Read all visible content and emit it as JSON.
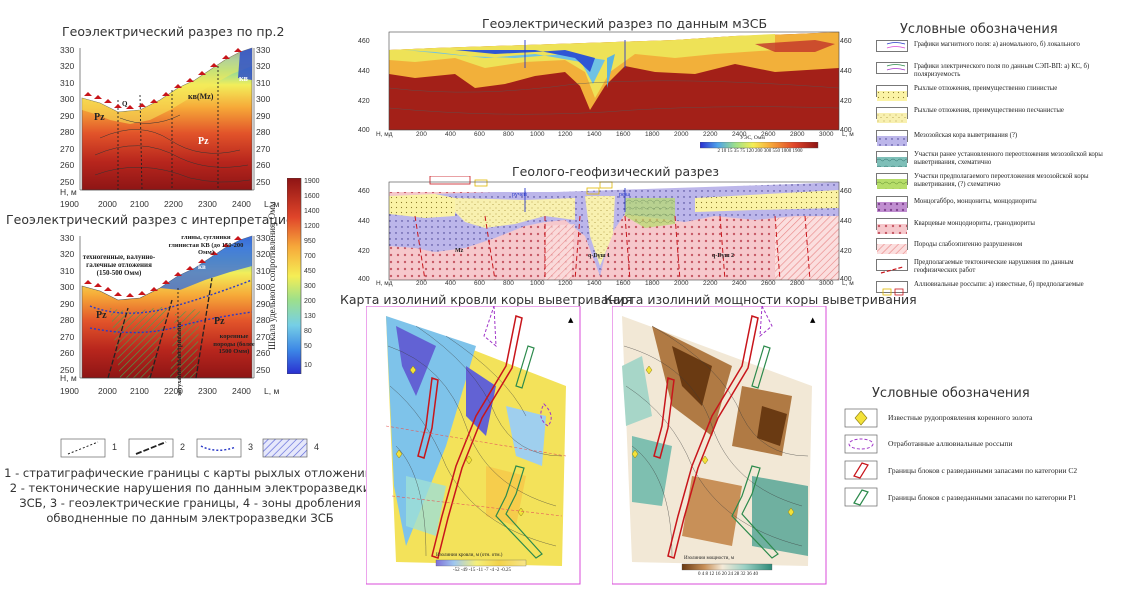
{
  "titles": {
    "section_pr2": "Геоэлектрический разрез по пр.2",
    "section_interp": "Геоэлектрический разрез с интерпретацией",
    "mzsb": "Геоэлектрический разрез по данным мЗСБ",
    "geo": "Геолого-геофизический разрез",
    "map_top": "Карта изолиний кровли коры выветривания",
    "map_thick": "Карта изолиний мощности коры выветривания",
    "legend_top": "Условные обозначения",
    "legend_bottom": "Условные обозначения"
  },
  "axes_left": {
    "y_ticks": [
      "330",
      "320",
      "310",
      "300",
      "290",
      "280",
      "270",
      "260",
      "250"
    ],
    "x_ticks": [
      "1900",
      "2000",
      "2100",
      "2200",
      "2300",
      "2400"
    ],
    "y_label": "Н, м",
    "x_label": "L, м"
  },
  "axes_mzsb": {
    "y_ticks": [
      "460",
      "440",
      "420",
      "400"
    ],
    "x_ticks": [
      "200",
      "400",
      "600",
      "800",
      "1000",
      "1200",
      "1400",
      "1600",
      "1800",
      "2000",
      "2200",
      "2400",
      "2600",
      "2800",
      "3000"
    ],
    "y_label": "Н, мд",
    "x_label": "L, м"
  },
  "colorbar": {
    "label": "Шкала удельного сопротивления, Омм",
    "ticks": [
      "1900",
      "1600",
      "1400",
      "1200",
      "950",
      "700",
      "450",
      "300",
      "200",
      "130",
      "80",
      "50",
      "10"
    ]
  },
  "mzsb_scale": {
    "label": "УЭС, Омм",
    "ticks": "2 10 15 35 75 120 200 300 550 1000 1900"
  },
  "section_labels": {
    "pz1": "Pz",
    "pz2": "Pz",
    "kv_mz": "кв(Mz)",
    "kv": "кв",
    "q": "Q"
  },
  "interp_labels": {
    "techno": "техногенные, валунно-галечные отложения (150-500 Омм)",
    "clay": "глины, суглинки глинистая КВ (до 150-200 Омм)",
    "bedrock": "коренные породы (более 1500 Омм)",
    "fading": "затухание выветривания",
    "kv": "кв",
    "pz1": "Pz",
    "pz2": "Pz"
  },
  "geo_labels": {
    "rucheyi": "ручей",
    "reka": "река",
    "mz": "Mz",
    "qd1": "q-Dγш 1",
    "qd2": "q-Dγш 2"
  },
  "legend_items": [
    {
      "text": "Графики магнитного поля: а) аномального, б) локального",
      "ab": "а)\nб)"
    },
    {
      "text": "Графики электрического поля по данным СЭП-ВП: а) КС, б) поляризуемость",
      "ab": "а)\nб)"
    },
    {
      "text": "Рыхлые отложения, преимущественно глинистые"
    },
    {
      "text": "Рыхлые отложения, преимущественно песчанистые"
    },
    {
      "text": "Мезозойская кора выветривания (?)",
      "code": "Mz"
    },
    {
      "text": "Участки ранее установленного переотложения мезозойской коры выветривания, схематично"
    },
    {
      "text": "Участки предполагаемого переотложения мезозойской коры выветривания, (?) схематично"
    },
    {
      "text": "Монцогаббро, монцониты, монцодиориты",
      "code": "q-Dγш 1"
    },
    {
      "text": "Кварцевые монцодиориты, гранодиориты",
      "code": "q-Dγш 2"
    },
    {
      "text": "Породы слабоэпигенно разрушенном"
    },
    {
      "text": "Предполагаемые тектонические нарушения по данным геофизических работ"
    },
    {
      "text": "Аллювиальные россыпи: а) известные, б) предполагаемые",
      "ab": "а)   б)"
    }
  ],
  "bottom_legend": [
    {
      "num": "1"
    },
    {
      "num": "2"
    },
    {
      "num": "3"
    },
    {
      "num": "4"
    }
  ],
  "caption": {
    "line1": "1 - стратиграфические границы с карты рыхлых отложений,",
    "line2": "2 - тектонические нарушения по данным электроразведки",
    "line3": "ЗСБ, 3 - геоэлектрические границы, 4 - зоны дробления",
    "line4": "обводненные по данным электроразведки ЗСБ"
  },
  "map_legend": [
    {
      "text": "Известные рудопроявления коренного золота"
    },
    {
      "text": "Отработанные аллювиальные россыпи"
    },
    {
      "text": "Границы блоков с разведанными запасами по категории С2"
    },
    {
      "text": "Границы блоков с разведанными запасами по категории Р1"
    }
  ],
  "map1_scale": {
    "label": "Изолинии кровли, м (отн. отм.)",
    "ticks": "-52 -49 -15 -11 -7 -4 -2 -0.25"
  },
  "map2_scale": {
    "label": "Изолинии мощности, м",
    "ticks": "0 4 8 12 16 20 24 28 32 36 40"
  },
  "colors": {
    "red": "#c8151b",
    "blue": "#2a46d8",
    "yellow": "#f3e23a",
    "magenta": "#d84bd8",
    "green": "#2c8a4c",
    "brown": "#8a4b17"
  }
}
